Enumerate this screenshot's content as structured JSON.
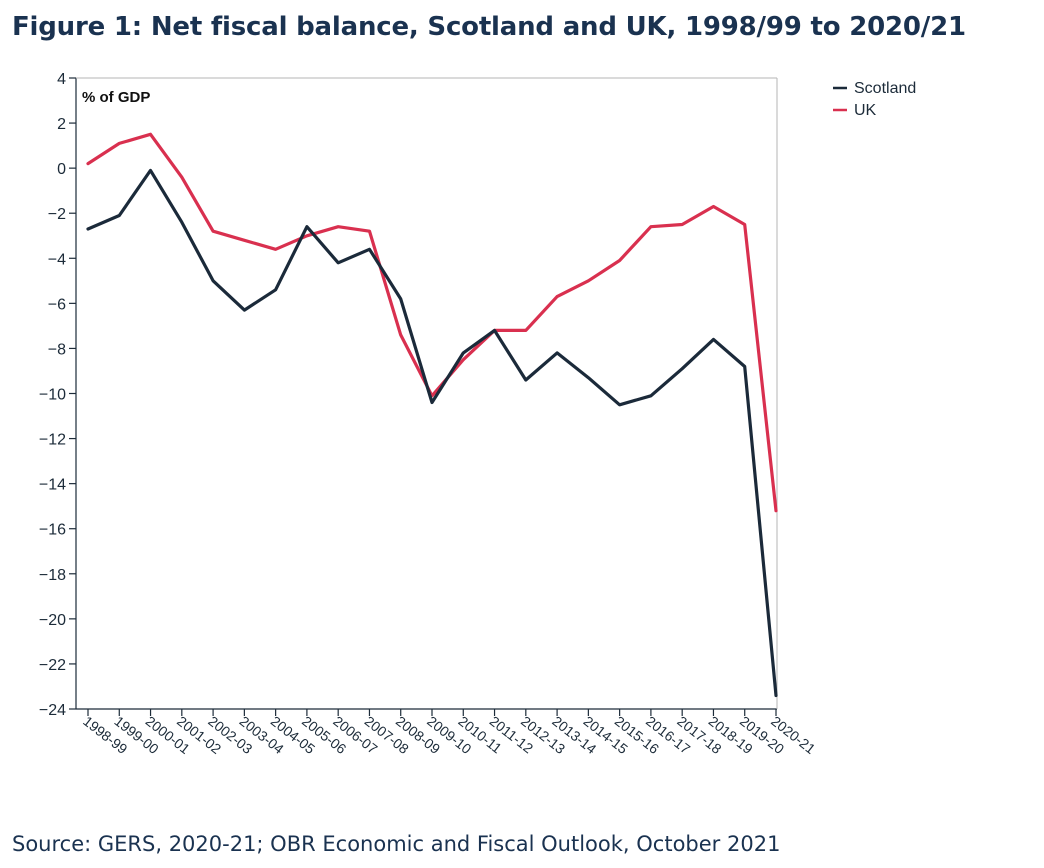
{
  "title": "Figure 1: Net fiscal balance, Scotland and UK, 1998/99 to 2020/21",
  "source": "Source: GERS, 2020-21; OBR Economic and Fiscal Outlook, October 2021",
  "colors": {
    "Scotland": "#1b2a3a",
    "UK": "#d9304f"
  },
  "chart_data": {
    "type": "line",
    "title": "Figure 1: Net fiscal balance, Scotland and UK, 1998/99 to 2020/21",
    "ylabel": "% of GDP",
    "ylim": [
      -24,
      4
    ],
    "yticks": [
      4,
      2,
      0,
      -2,
      -4,
      -6,
      -8,
      -10,
      -12,
      -14,
      -16,
      -18,
      -20,
      -22,
      -24
    ],
    "ytick_labels": [
      "4",
      "2",
      "0",
      "−2",
      "−4",
      "−6",
      "−8",
      "−10",
      "−12",
      "−14",
      "−16",
      "−18",
      "−20",
      "−22",
      "−24"
    ],
    "grid": false,
    "legend_position": "top-right",
    "categories": [
      "1998-99",
      "1999-00",
      "2000-01",
      "2001-02",
      "2002-03",
      "2003-04",
      "2004-05",
      "2005-06",
      "2006-07",
      "2007-08",
      "2008-09",
      "2009-10",
      "2010-11",
      "2011-12",
      "2012-13",
      "2013-14",
      "2014-15",
      "2015-16",
      "2016-17",
      "2017-18",
      "2018-19",
      "2019-20",
      "2020-21"
    ],
    "series": [
      {
        "name": "Scotland",
        "values": [
          -2.7,
          -2.1,
          -0.1,
          -2.4,
          -5.0,
          -6.3,
          -5.4,
          -2.6,
          -4.2,
          -3.6,
          -5.8,
          -10.4,
          -8.2,
          -7.2,
          -9.4,
          -8.2,
          -9.3,
          -10.5,
          -10.1,
          -8.9,
          -7.6,
          -8.8,
          -23.4
        ]
      },
      {
        "name": "UK",
        "values": [
          0.2,
          1.1,
          1.5,
          -0.4,
          -2.8,
          -3.2,
          -3.6,
          -3.0,
          -2.6,
          -2.8,
          -7.4,
          -10.1,
          -8.5,
          -7.2,
          -7.2,
          -5.7,
          -5.0,
          -4.1,
          -2.6,
          -2.5,
          -1.7,
          -2.5,
          -15.2
        ]
      }
    ]
  }
}
